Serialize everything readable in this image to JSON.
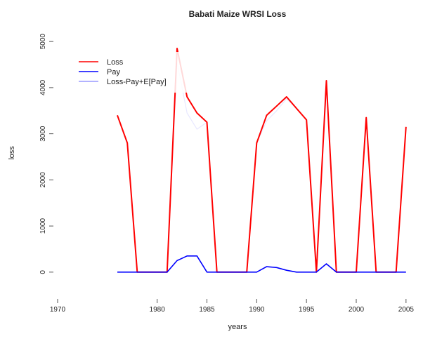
{
  "chart_data": {
    "type": "line",
    "title": "Babati Maize WRSI Loss",
    "xlabel": "years",
    "ylabel": "loss",
    "xlim": [
      1970,
      2006
    ],
    "ylim": [
      -550,
      5200
    ],
    "x_ticks": [
      1970,
      1980,
      1985,
      1990,
      1995,
      2000,
      2005
    ],
    "x_tick_labels": [
      "1970",
      "1980",
      "1985",
      "1990",
      "1995",
      "2000",
      "2005"
    ],
    "y_ticks": [
      0,
      1000,
      2000,
      3000,
      4000,
      5000
    ],
    "y_tick_labels": [
      "0",
      "1000",
      "2000",
      "3000",
      "4000",
      "5000"
    ],
    "grid": false,
    "legend_position": "top-left",
    "x": [
      1976,
      1977,
      1978,
      1979,
      1980,
      1981,
      1982,
      1983,
      1984,
      1985,
      1986,
      1987,
      1988,
      1989,
      1990,
      1991,
      1992,
      1993,
      1994,
      1995,
      1996,
      1997,
      1998,
      1999,
      2000,
      2001,
      2002,
      2003,
      2004,
      2005
    ],
    "series": [
      {
        "name": "Loss",
        "color": "#ff0000",
        "values": [
          3400,
          2800,
          0,
          0,
          0,
          0,
          4850,
          3800,
          3450,
          3250,
          0,
          0,
          0,
          0,
          2800,
          3400,
          3600,
          3800,
          3550,
          3300,
          0,
          4150,
          0,
          0,
          0,
          3350,
          0,
          0,
          0,
          3150
        ]
      },
      {
        "name": "Pay",
        "color": "#0000ff",
        "values": [
          0,
          0,
          0,
          0,
          0,
          0,
          250,
          350,
          350,
          0,
          0,
          0,
          0,
          0,
          0,
          120,
          100,
          40,
          0,
          0,
          0,
          180,
          0,
          0,
          0,
          0,
          0,
          0,
          0,
          0
        ]
      },
      {
        "name": "Loss-Pay+E[Pay]",
        "color": "#e8e8ff",
        "values": [
          3400,
          2800,
          0,
          0,
          0,
          0,
          4550,
          3450,
          3100,
          3250,
          0,
          0,
          0,
          0,
          2800,
          3280,
          3500,
          3760,
          3550,
          3300,
          0,
          3970,
          0,
          0,
          0,
          3350,
          0,
          0,
          0,
          3150
        ]
      }
    ]
  }
}
